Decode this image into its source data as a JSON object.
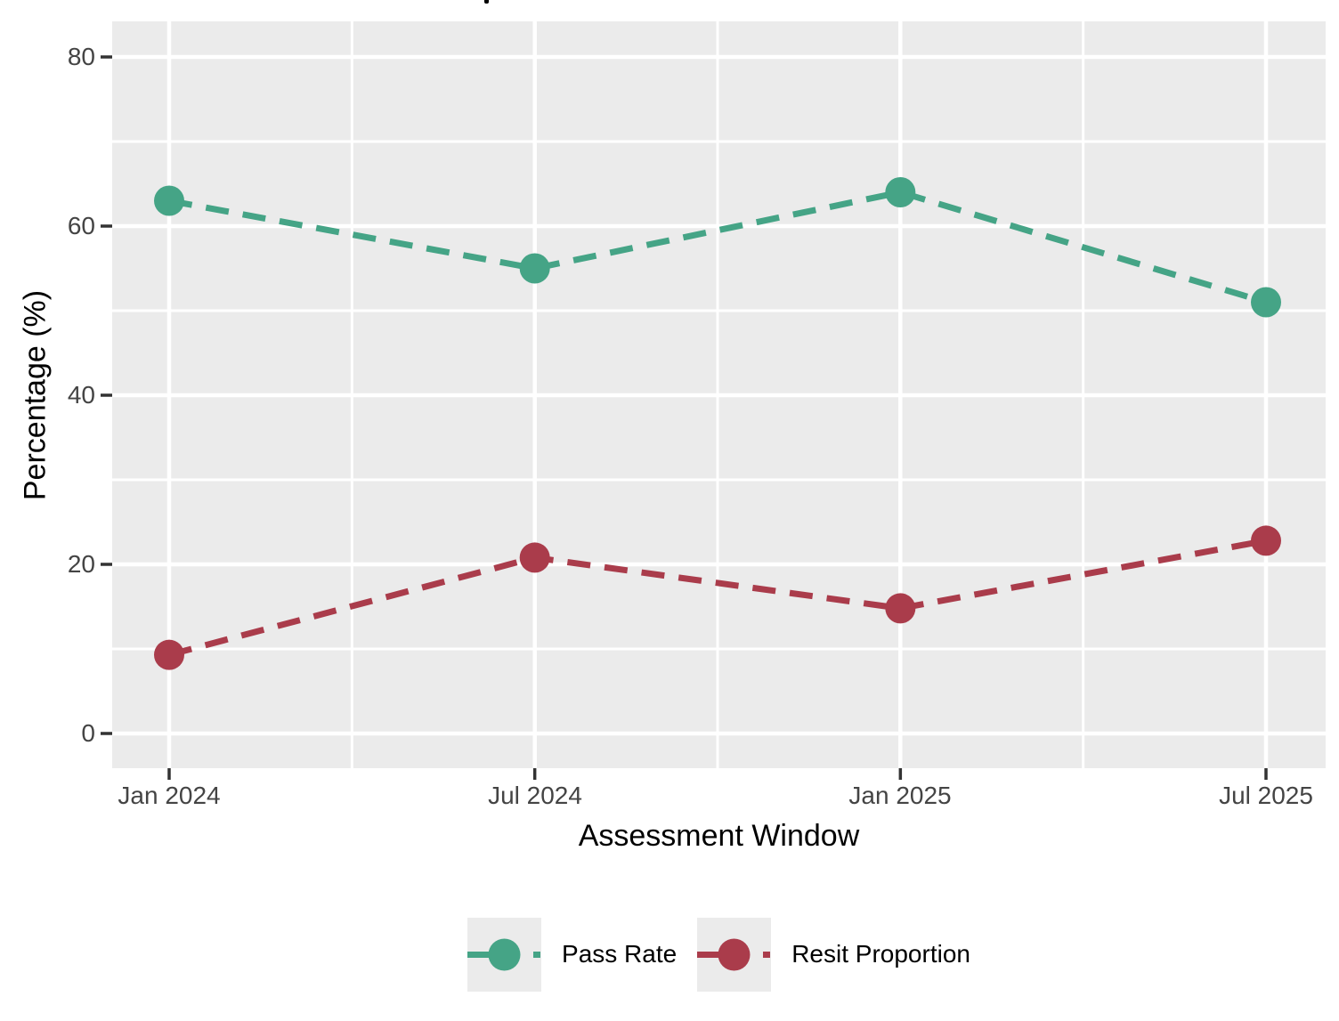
{
  "chart_data": {
    "type": "line",
    "title": "",
    "xlabel": "Assessment Window",
    "ylabel": "Percentage (%)",
    "x": [
      "Jan 2024",
      "Jul 2024",
      "Jan 2025",
      "Jul 2025"
    ],
    "series": [
      {
        "name": "Pass Rate",
        "color": "#45A486",
        "values": [
          63,
          55,
          64,
          51
        ]
      },
      {
        "name": "Resit Proportion",
        "color": "#AA3C4B",
        "values": [
          9.3,
          20.8,
          14.8,
          22.8
        ]
      }
    ],
    "y_ticks": [
      0,
      20,
      40,
      60,
      80
    ],
    "y_tick_labels": [
      "0",
      "20",
      "40",
      "60",
      "80"
    ],
    "y_minor": [
      10,
      30,
      50,
      70
    ],
    "ylim": [
      -4,
      84
    ],
    "grid": true,
    "legend_position": "bottom",
    "line_style": "dashed",
    "marker": "circle",
    "colors": {
      "panel_bg": "#EBEBEB",
      "grid": "#FFFFFF",
      "tick": "#333333",
      "tick_label": "#444444",
      "axis_title": "#000000",
      "legend_key_bg": "#EBEBEB"
    }
  }
}
